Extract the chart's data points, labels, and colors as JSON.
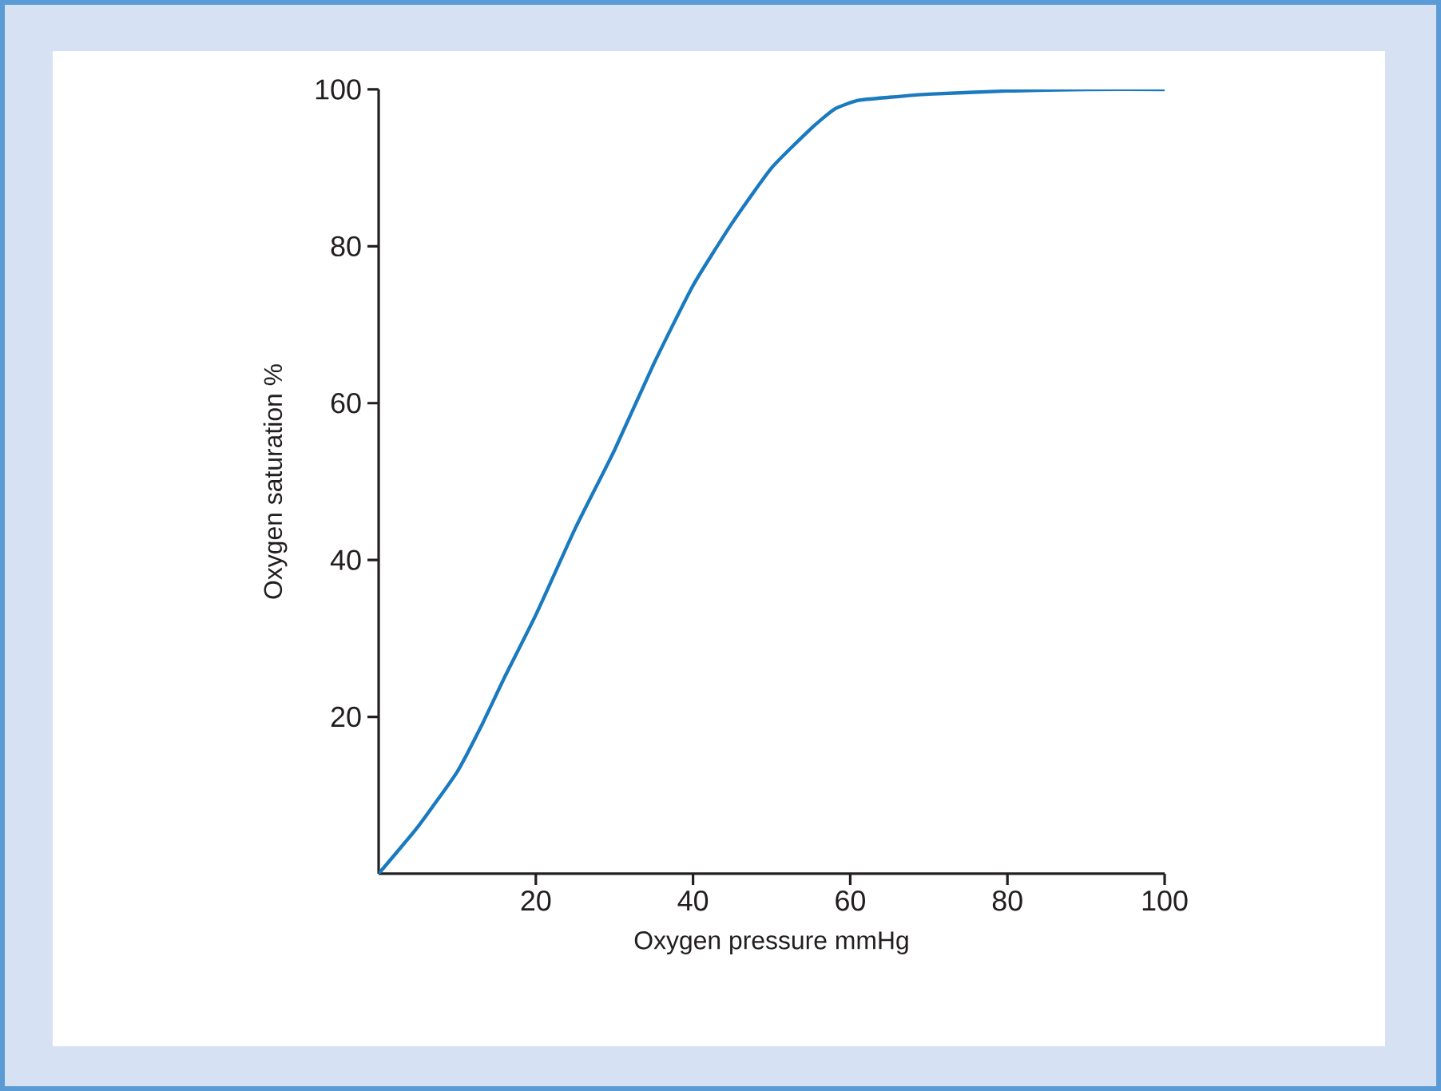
{
  "chart_data": {
    "type": "line",
    "xlabel": "Oxygen pressure mmHg",
    "ylabel": "Oxygen saturation %",
    "x": [
      0,
      5,
      10,
      13,
      16,
      20,
      25,
      30,
      35,
      40,
      45,
      50,
      55,
      58,
      61,
      65,
      70,
      80,
      90,
      100
    ],
    "series": [
      {
        "color": "#1a7abf",
        "values": [
          0,
          6,
          13,
          18.7,
          25,
          33,
          44,
          54,
          65,
          75,
          83,
          90,
          95,
          97.5,
          98.6,
          99,
          99.4,
          99.8,
          100,
          100
        ]
      }
    ],
    "xlim": [
      0,
      100
    ],
    "ylim": [
      0,
      100
    ],
    "xticks": [
      20,
      40,
      60,
      80,
      100
    ],
    "yticks": [
      20,
      40,
      60,
      80,
      100
    ]
  }
}
